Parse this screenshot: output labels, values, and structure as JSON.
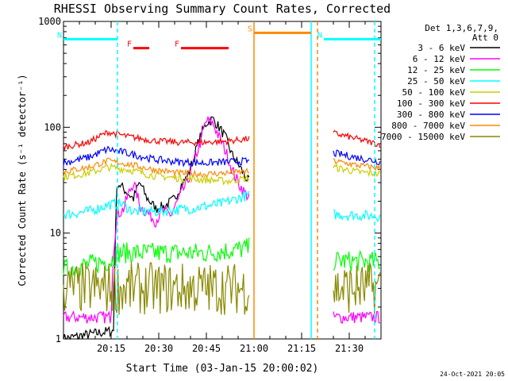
{
  "chart_data": {
    "type": "line",
    "title": "RHESSI Observing Summary Count Rates, Corrected",
    "xlabel": "Start Time (03-Jan-15 20:00:02)",
    "ylabel": "Corrected Count Rate (s⁻¹ detector⁻¹)",
    "y_scale": "log",
    "ylim": [
      1,
      1000
    ],
    "x_unit": "minutes after 20:00",
    "xlim": [
      0,
      100
    ],
    "x_ticks": [
      {
        "value": 15,
        "label": "20:15"
      },
      {
        "value": 30,
        "label": "20:30"
      },
      {
        "value": 45,
        "label": "20:45"
      },
      {
        "value": 60,
        "label": "21:00"
      },
      {
        "value": 75,
        "label": "21:15"
      },
      {
        "value": 90,
        "label": "21:30"
      }
    ],
    "y_ticks": [
      {
        "value": 1,
        "label": "1"
      },
      {
        "value": 10,
        "label": "10"
      },
      {
        "value": 100,
        "label": "100"
      },
      {
        "value": 1000,
        "label": "1000"
      }
    ],
    "legend_title": "Det 1,3,6,7,9,",
    "legend_subtitle": "Att 0",
    "legend_placement": "right",
    "footer_date": "24-Oct-2021 20:05",
    "series": [
      {
        "name": "3 - 6 keV",
        "color": "#000000",
        "segments": [
          [
            [
              0,
              1
            ],
            [
              16,
              1.2
            ],
            [
              17,
              30
            ],
            [
              19,
              26
            ],
            [
              22,
              21
            ],
            [
              24,
              30
            ],
            [
              26,
              22
            ],
            [
              29,
              17
            ],
            [
              32,
              18
            ],
            [
              35,
              21
            ],
            [
              37,
              28
            ],
            [
              39,
              34
            ],
            [
              41,
              50
            ],
            [
              43,
              80
            ],
            [
              45,
              110
            ],
            [
              47,
              120
            ],
            [
              49,
              100
            ],
            [
              51,
              80
            ],
            [
              53,
              55
            ],
            [
              55,
              45
            ],
            [
              57,
              35
            ],
            [
              58.5,
              30
            ]
          ]
        ]
      },
      {
        "name": "6 - 12 keV",
        "color": "#ff00ff",
        "segments": [
          [
            [
              0,
              1.6
            ],
            [
              15,
              1.6
            ],
            [
              17,
              15
            ],
            [
              19,
              17
            ],
            [
              22,
              30
            ],
            [
              24,
              18
            ],
            [
              27,
              15
            ],
            [
              29,
              13
            ],
            [
              31,
              16
            ],
            [
              34,
              15
            ],
            [
              36,
              20
            ],
            [
              39,
              30
            ],
            [
              41,
              45
            ],
            [
              43,
              70
            ],
            [
              45,
              115
            ],
            [
              47,
              110
            ],
            [
              49,
              80
            ],
            [
              51,
              60
            ],
            [
              53,
              40
            ],
            [
              55,
              30
            ],
            [
              57,
              24
            ],
            [
              58.5,
              22
            ]
          ],
          [
            [
              85,
              1.6
            ],
            [
              100,
              1.6
            ]
          ]
        ]
      },
      {
        "name": "12 - 25 keV",
        "color": "#00ff00",
        "segments": [
          [
            [
              0,
              4.5
            ],
            [
              15,
              5.5
            ],
            [
              17,
              6.5
            ],
            [
              30,
              6.5
            ],
            [
              45,
              6.5
            ],
            [
              58.5,
              7.2
            ]
          ],
          [
            [
              85,
              5.5
            ],
            [
              100,
              5.3
            ]
          ]
        ]
      },
      {
        "name": "25 - 50 keV",
        "color": "#00ffff",
        "segments": [
          [
            [
              0,
              15
            ],
            [
              8,
              16
            ],
            [
              14,
              18.5
            ],
            [
              18,
              19
            ],
            [
              22,
              16
            ],
            [
              30,
              16
            ],
            [
              40,
              17
            ],
            [
              50,
              19
            ],
            [
              58.5,
              23
            ]
          ],
          [
            [
              85,
              15
            ],
            [
              100,
              14.5
            ]
          ]
        ]
      },
      {
        "name": "50 - 100 keV",
        "color": "#cccc00",
        "segments": [
          [
            [
              0,
              34
            ],
            [
              8,
              37
            ],
            [
              14,
              42
            ],
            [
              20,
              40
            ],
            [
              28,
              35
            ],
            [
              36,
              33
            ],
            [
              44,
              32
            ],
            [
              52,
              31
            ],
            [
              58.5,
              33
            ]
          ],
          [
            [
              85,
              42
            ],
            [
              92,
              38
            ],
            [
              100,
              36
            ]
          ]
        ]
      },
      {
        "name": "100 - 300 keV",
        "color": "#ff0000",
        "segments": [
          [
            [
              0,
              65
            ],
            [
              8,
              72
            ],
            [
              14,
              90
            ],
            [
              20,
              82
            ],
            [
              28,
              75
            ],
            [
              36,
              72
            ],
            [
              44,
              72
            ],
            [
              52,
              74
            ],
            [
              58.5,
              78
            ]
          ],
          [
            [
              85,
              88
            ],
            [
              92,
              78
            ],
            [
              100,
              68
            ]
          ]
        ]
      },
      {
        "name": "300 - 800 keV",
        "color": "#0000ff",
        "segments": [
          [
            [
              0,
              46
            ],
            [
              8,
              52
            ],
            [
              14,
              62
            ],
            [
              20,
              57
            ],
            [
              28,
              50
            ],
            [
              36,
              47
            ],
            [
              44,
              46
            ],
            [
              52,
              47
            ],
            [
              58.5,
              48
            ]
          ],
          [
            [
              85,
              57
            ],
            [
              92,
              52
            ],
            [
              100,
              47
            ]
          ]
        ]
      },
      {
        "name": "800 - 7000 keV",
        "color": "#ff8800",
        "segments": [
          [
            [
              0,
              38
            ],
            [
              8,
              42
            ],
            [
              14,
              48
            ],
            [
              20,
              45
            ],
            [
              28,
              40
            ],
            [
              36,
              37
            ],
            [
              44,
              36
            ],
            [
              52,
              37
            ],
            [
              58.5,
              38
            ]
          ],
          [
            [
              85,
              48
            ],
            [
              92,
              44
            ],
            [
              100,
              41
            ]
          ]
        ]
      },
      {
        "name": "7000 - 15000 keV",
        "color": "#888800",
        "segments": [
          [
            [
              0,
              3
            ],
            [
              15,
              3
            ],
            [
              30,
              3
            ],
            [
              45,
              3
            ],
            [
              58.5,
              3
            ]
          ],
          [
            [
              85,
              3
            ],
            [
              100,
              3
            ]
          ]
        ]
      }
    ],
    "flags": [
      {
        "label": "N",
        "color": "#00ffff",
        "level": 680,
        "x_start": 0,
        "x_end": 17
      },
      {
        "label": "N",
        "color": "#00ffff",
        "level": 680,
        "x_start": 82,
        "x_end": 100
      },
      {
        "label": "F",
        "color": "#ff0000",
        "level": 560,
        "x_start": 22,
        "x_end": 27
      },
      {
        "label": "F",
        "color": "#ff0000",
        "level": 560,
        "x_start": 37,
        "x_end": 52
      },
      {
        "label": "S",
        "color": "#ff8800",
        "level": 780,
        "x_start": 60,
        "x_end": 78
      }
    ],
    "markers": [
      {
        "x": 17,
        "color": "#00ffff",
        "style": "dashed"
      },
      {
        "x": 60,
        "color": "#ff8800",
        "style": "solid"
      },
      {
        "x": 78,
        "color": "#00ffff",
        "style": "solid"
      },
      {
        "x": 80,
        "color": "#ff8800",
        "style": "dashed"
      },
      {
        "x": 98,
        "color": "#00ffff",
        "style": "dashed"
      }
    ]
  }
}
